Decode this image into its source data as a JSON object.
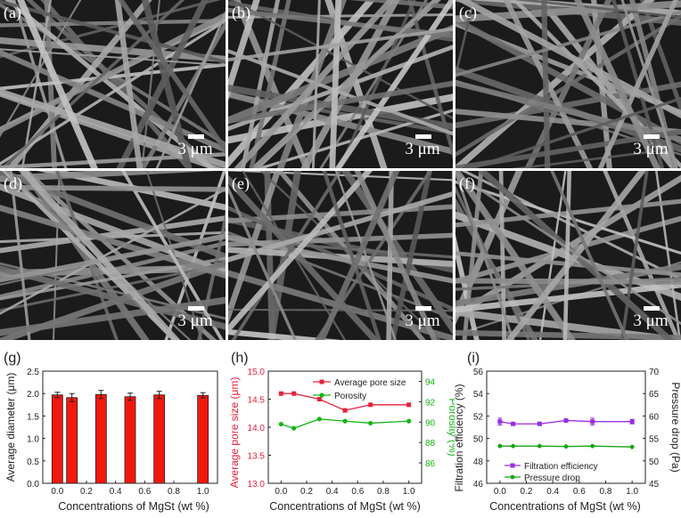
{
  "panels": [
    {
      "label": "(a)",
      "scale": "3 μm"
    },
    {
      "label": "(b)",
      "scale": "3 μm"
    },
    {
      "label": "(c)",
      "scale": "3 μm"
    },
    {
      "label": "(d)",
      "scale": "3 μm"
    },
    {
      "label": "(e)",
      "scale": "3 μm"
    },
    {
      "label": "(f)",
      "scale": "3 μm"
    }
  ],
  "chart_data": [
    {
      "panel": "(g)",
      "type": "bar",
      "x": [
        0.0,
        0.1,
        0.3,
        0.5,
        0.7,
        1.0
      ],
      "values": [
        1.97,
        1.91,
        1.98,
        1.93,
        1.97,
        1.96
      ],
      "errors": [
        0.06,
        0.09,
        0.09,
        0.08,
        0.08,
        0.06
      ],
      "xlabel": "Concentrations of MgSt (wt %)",
      "ylabel": "Average diameter (μm)",
      "xlim": [
        -0.1,
        1.1
      ],
      "ylim": [
        0.0,
        2.5
      ],
      "xticks": [
        "0.0",
        "0.2",
        "0.4",
        "0.6",
        "0.8",
        "1.0"
      ],
      "yticks": [
        "0.0",
        "0.5",
        "1.0",
        "1.5",
        "2.0",
        "2.5"
      ],
      "colors": {
        "bar": "#f2180e"
      }
    },
    {
      "panel": "(h)",
      "type": "line",
      "x": [
        0.0,
        0.1,
        0.3,
        0.5,
        0.7,
        1.0
      ],
      "series": [
        {
          "name": "Average pore size",
          "axis": "left",
          "values": [
            14.6,
            14.6,
            14.5,
            14.3,
            14.4,
            14.4
          ],
          "color": "#e8203a"
        },
        {
          "name": "Porosity",
          "axis": "right",
          "values": [
            89.8,
            89.4,
            90.3,
            90.1,
            89.9,
            90.1
          ],
          "color": "#15b515"
        }
      ],
      "xlabel": "Concentrations of MgSt (wt %)",
      "ylabel": "Average pore size (μm)",
      "y2label": "Porosity (%)",
      "xlim": [
        -0.1,
        1.1
      ],
      "ylim": [
        13.0,
        15.0
      ],
      "y2lim": [
        84,
        95
      ],
      "xticks": [
        "0.0",
        "0.2",
        "0.4",
        "0.6",
        "0.8",
        "1.0"
      ],
      "yticks": [
        "13.0",
        "13.5",
        "14.0",
        "14.5",
        "15.0"
      ],
      "y2ticks": [
        "86",
        "88",
        "90",
        "92",
        "94"
      ],
      "legend": "top-right"
    },
    {
      "panel": "(i)",
      "type": "line",
      "x": [
        0.0,
        0.1,
        0.3,
        0.5,
        0.7,
        1.0
      ],
      "series": [
        {
          "name": "Filtration efficiency",
          "axis": "left",
          "values": [
            51.5,
            51.3,
            51.3,
            51.6,
            51.5,
            51.5
          ],
          "errors": [
            0.3,
            0.1,
            0.1,
            0.1,
            0.3,
            0.2
          ],
          "color": "#9a2de8"
        },
        {
          "name": "Pressure drop",
          "axis": "right",
          "values": [
            53.3,
            53.3,
            53.3,
            53.2,
            53.3,
            53.1
          ],
          "color": "#15a515"
        }
      ],
      "xlabel": "Concentrations of MgSt (wt %)",
      "ylabel": "Filtration efficiency (%)",
      "y2label": "Pressure drop (Pa)",
      "xlim": [
        -0.1,
        1.1
      ],
      "ylim": [
        46,
        56
      ],
      "y2lim": [
        45,
        70
      ],
      "xticks": [
        "0.0",
        "0.2",
        "0.4",
        "0.6",
        "0.8",
        "1.0"
      ],
      "yticks": [
        "46",
        "48",
        "50",
        "52",
        "54",
        "56"
      ],
      "y2ticks": [
        "45",
        "50",
        "55",
        "60",
        "65",
        "70"
      ],
      "legend": "bottom-right"
    }
  ]
}
